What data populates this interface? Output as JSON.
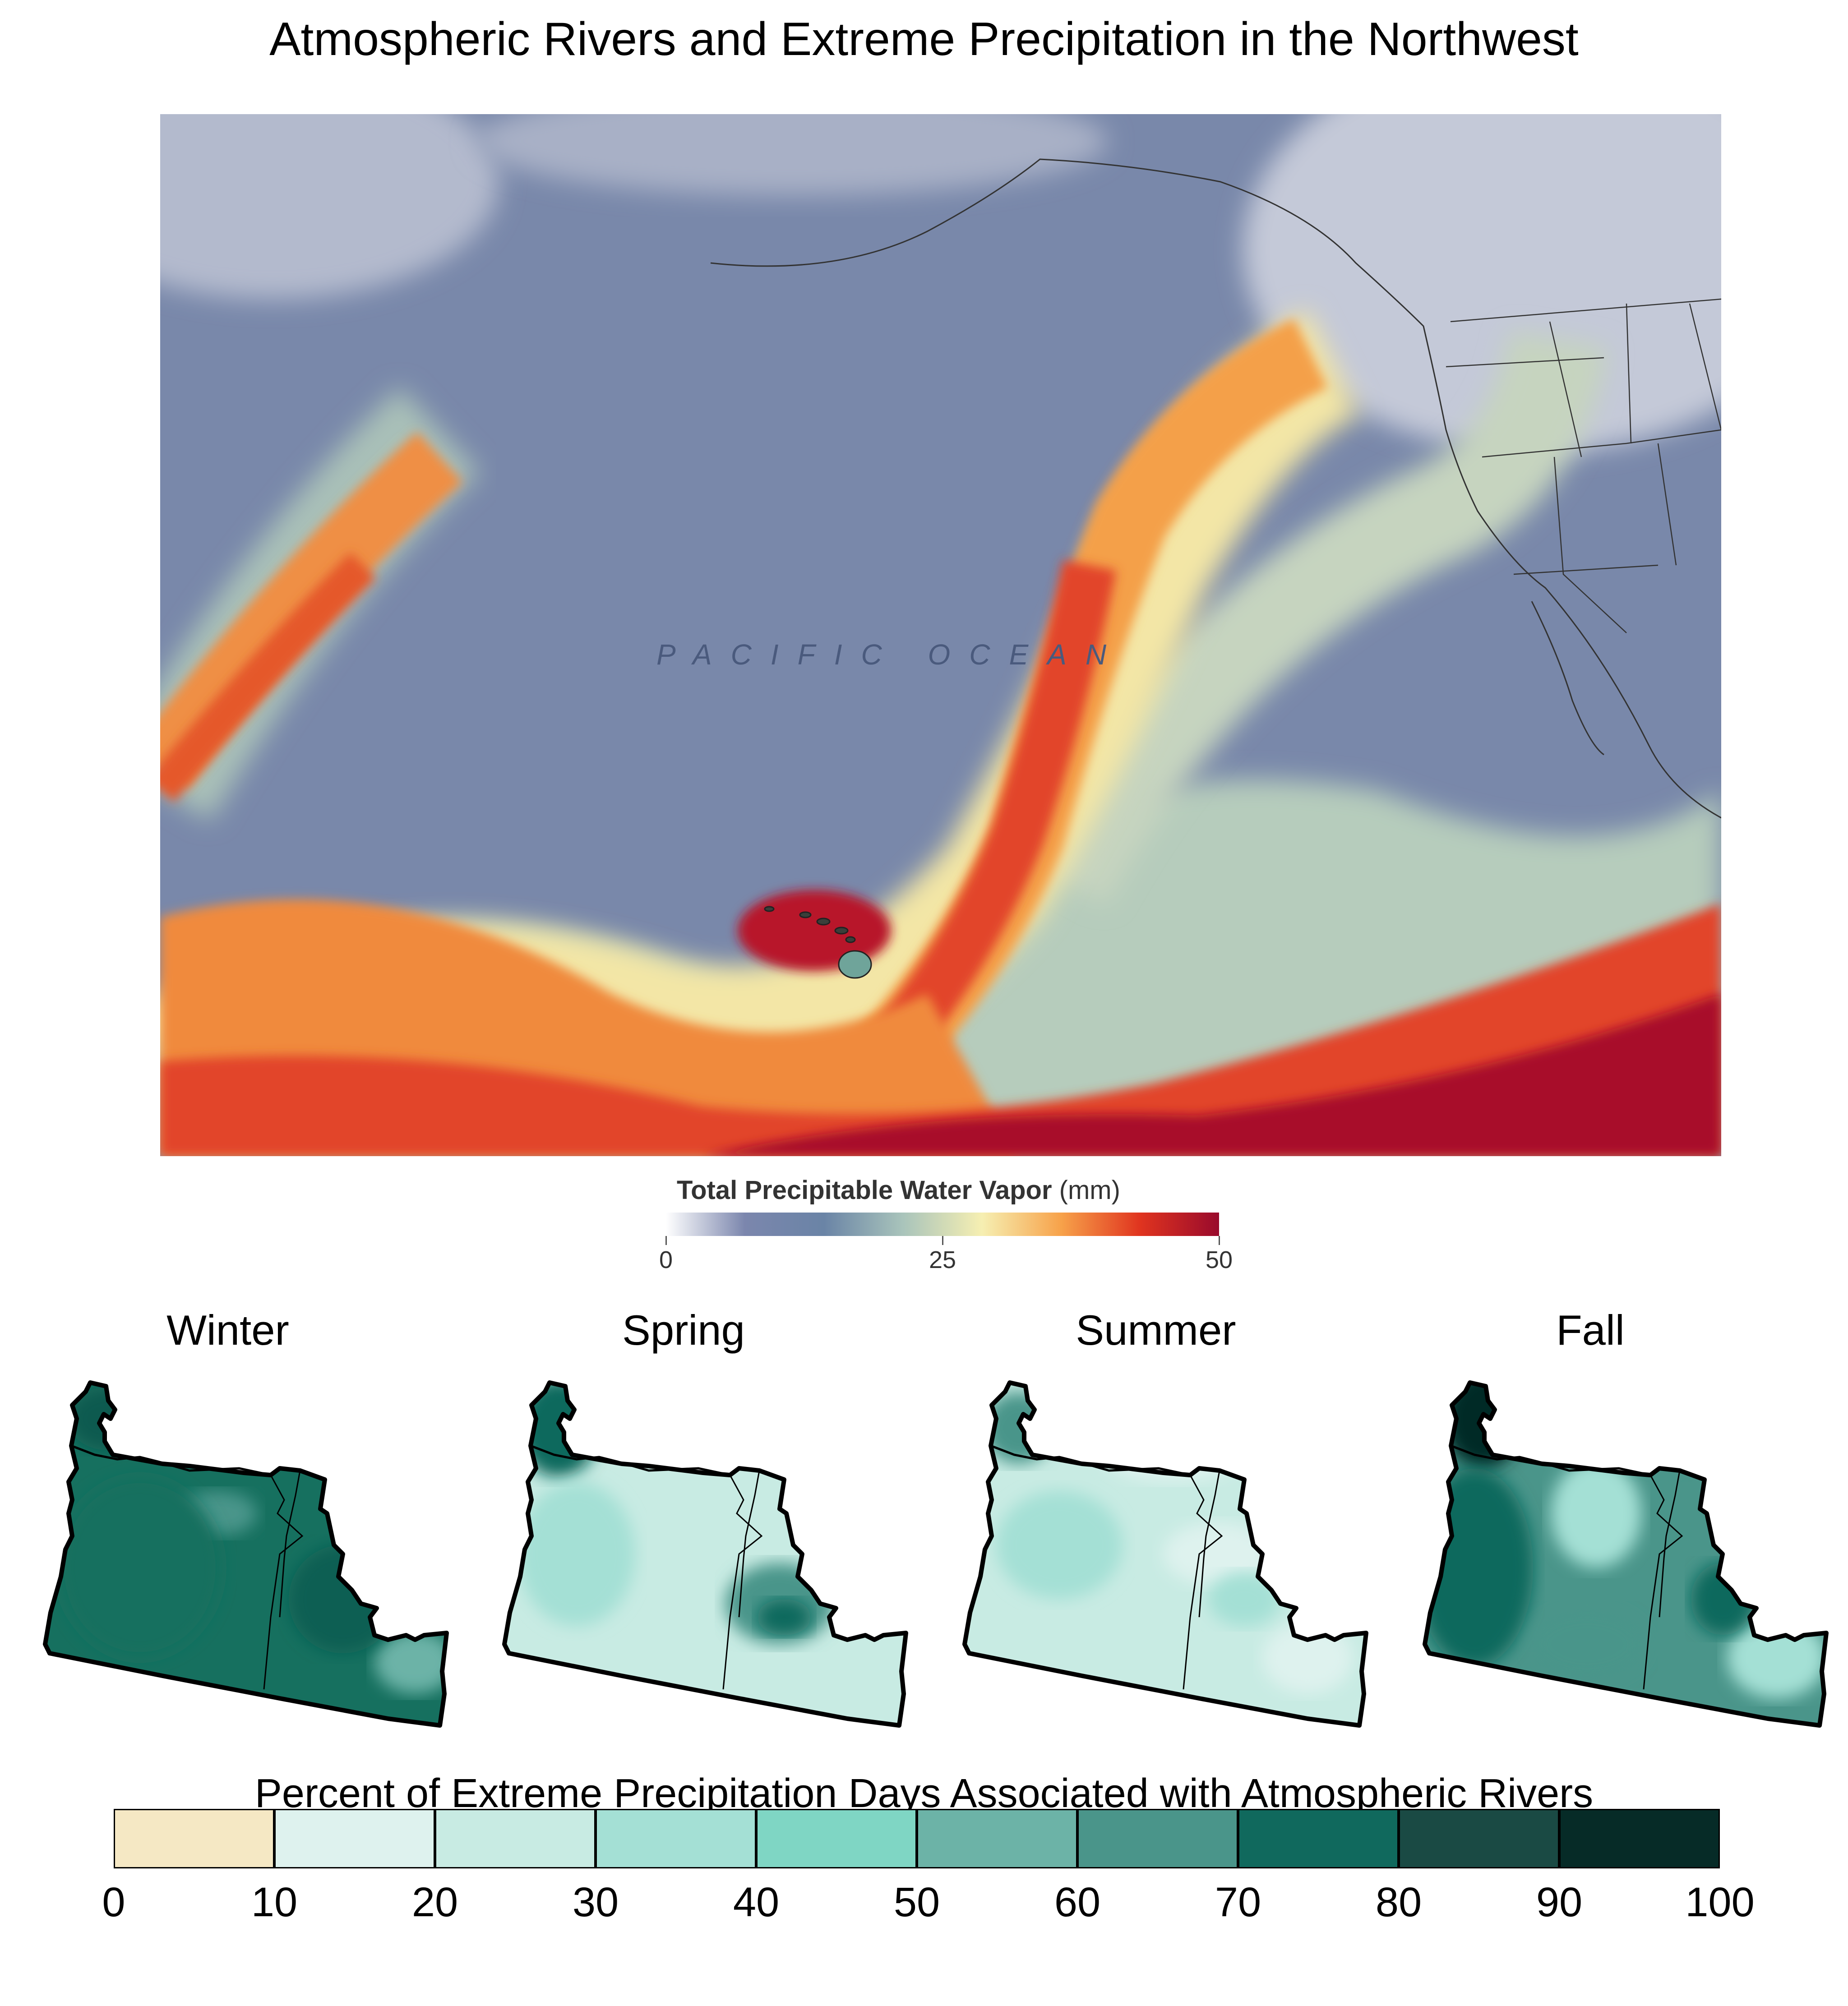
{
  "title": "Atmospheric Rivers and Extreme Precipitation in the Northwest",
  "vapor_map": {
    "ocean_label": "PACIFIC OCEAN",
    "legend": {
      "title": "Total Precipitable Water Vapor",
      "unit": "(mm)",
      "ticks": [
        "0",
        "25",
        "50"
      ],
      "range_mm": [
        0,
        50
      ],
      "colors": [
        "#ffffff",
        "#7b86ad",
        "#6a84a6",
        "#a9c4bb",
        "#f6efb2",
        "#f7a24a",
        "#e0341f",
        "#990a2c"
      ]
    }
  },
  "seasons": [
    "Winter",
    "Spring",
    "Summer",
    "Fall"
  ],
  "ar_legend": {
    "title": "Percent of Extreme Precipitation Days Associated with Atmospheric Rivers",
    "ticks": [
      "0",
      "10",
      "20",
      "30",
      "40",
      "50",
      "60",
      "70",
      "80",
      "90",
      "100"
    ],
    "colors": [
      "#f5e8c4",
      "#def2ee",
      "#c8ebe3",
      "#a4e0d5",
      "#7fd6c4",
      "#6cb3a7",
      "#4a958a",
      "#10695d",
      "#1a4a44",
      "#062b27"
    ]
  }
}
